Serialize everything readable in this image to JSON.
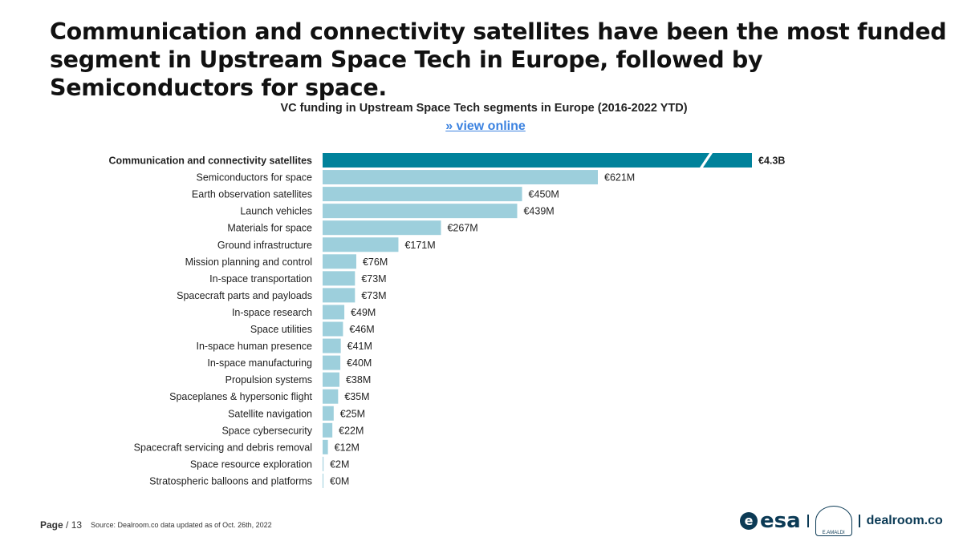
{
  "headline": "Communication and connectivity satellites have been the most funded segment in Upstream Space Tech in Europe, followed by Semiconductors for space.",
  "footer": {
    "page_label": "Page",
    "page_number": "/ 13",
    "source": "Source: Dealroom.co   data updated as of Oct. 26th, 2022"
  },
  "logos": {
    "esa": "esa",
    "esa_mark": "e",
    "amaldi": "E.AMALDI",
    "dealroom": "dealroom.co"
  },
  "colors": {
    "highlight": "#00829b",
    "bar": "#9dcfdc"
  },
  "chart_data": {
    "type": "bar",
    "orientation": "horizontal",
    "title": "VC funding in Upstream Space Tech segments in Europe (2016-2022 YTD)",
    "link": "» view online",
    "unit": "€M",
    "axis_break_on_first_bar": true,
    "categories": [
      "Communication and connectivity satellites",
      "Semiconductors for space",
      "Earth observation satellites",
      "Launch vehicles",
      "Materials for space",
      "Ground infrastructure",
      "Mission planning and control",
      "In-space transportation",
      "Spacecraft parts and payloads",
      "In-space research",
      "Space utilities",
      "In-space human presence",
      "In-space manufacturing",
      "Propulsion systems",
      "Spaceplanes & hypersonic flight",
      "Satellite navigation",
      "Space cybersecurity",
      "Spacecraft servicing and debris removal",
      "Space resource exploration",
      "Stratospheric balloons and platforms"
    ],
    "values": [
      4300,
      621,
      450,
      439,
      267,
      171,
      76,
      73,
      73,
      49,
      46,
      41,
      40,
      38,
      35,
      25,
      22,
      12,
      2,
      0
    ],
    "labels": [
      "€4.3B",
      "€621M",
      "€450M",
      "€439M",
      "€267M",
      "€171M",
      "€76M",
      "€73M",
      "€73M",
      "€49M",
      "€46M",
      "€41M",
      "€40M",
      "€38M",
      "€35M",
      "€25M",
      "€22M",
      "€12M",
      "€2M",
      "€0M"
    ]
  }
}
